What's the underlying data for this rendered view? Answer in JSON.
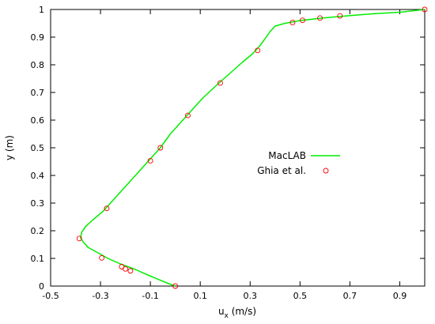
{
  "chart_data": {
    "type": "line",
    "title": "",
    "xlabel": "u",
    "xlabel_sub": "x",
    "xlabel_unit": " (m/s)",
    "ylabel": "y (m)",
    "xlim": [
      -0.5,
      1
    ],
    "ylim": [
      0,
      1
    ],
    "x_ticks": [
      -0.5,
      -0.3,
      -0.1,
      0.1,
      0.3,
      0.5,
      0.7,
      0.9
    ],
    "x_tick_labels": [
      "-0.5",
      "-0.3",
      "-0.1",
      "0.1",
      "0.3",
      "0.5",
      "0.7",
      "0.9"
    ],
    "y_ticks": [
      0,
      0.1,
      0.2,
      0.3,
      0.4,
      0.5,
      0.6,
      0.7,
      0.8,
      0.9,
      1
    ],
    "y_tick_labels": [
      "0",
      "0.1",
      "0.2",
      "0.3",
      "0.4",
      "0.5",
      "0.6",
      "0.7",
      "0.8",
      "0.9",
      "1"
    ],
    "grid": false,
    "legend_position": "center-right",
    "series": [
      {
        "name": "MacLAB",
        "style": "line",
        "color": "#00ee00",
        "points": [
          [
            0.0,
            0.0
          ],
          [
            -0.03,
            0.01
          ],
          [
            -0.07,
            0.025
          ],
          [
            -0.11,
            0.04
          ],
          [
            -0.16,
            0.06
          ],
          [
            -0.22,
            0.08
          ],
          [
            -0.27,
            0.1
          ],
          [
            -0.31,
            0.12
          ],
          [
            -0.35,
            0.14
          ],
          [
            -0.37,
            0.16
          ],
          [
            -0.38,
            0.175
          ],
          [
            -0.375,
            0.195
          ],
          [
            -0.36,
            0.215
          ],
          [
            -0.33,
            0.24
          ],
          [
            -0.29,
            0.27
          ],
          [
            -0.25,
            0.31
          ],
          [
            -0.2,
            0.36
          ],
          [
            -0.15,
            0.41
          ],
          [
            -0.1,
            0.46
          ],
          [
            -0.06,
            0.5
          ],
          [
            -0.02,
            0.55
          ],
          [
            0.02,
            0.59
          ],
          [
            0.06,
            0.63
          ],
          [
            0.11,
            0.68
          ],
          [
            0.17,
            0.73
          ],
          [
            0.22,
            0.77
          ],
          [
            0.27,
            0.81
          ],
          [
            0.31,
            0.84
          ],
          [
            0.34,
            0.87
          ],
          [
            0.36,
            0.895
          ],
          [
            0.38,
            0.92
          ],
          [
            0.4,
            0.94
          ],
          [
            0.44,
            0.95
          ],
          [
            0.5,
            0.96
          ],
          [
            0.6,
            0.97
          ],
          [
            0.7,
            0.978
          ],
          [
            0.8,
            0.985
          ],
          [
            0.9,
            0.99
          ],
          [
            0.96,
            0.996
          ],
          [
            1.0,
            1.0
          ]
        ]
      },
      {
        "name": "Ghia et al.",
        "style": "markers",
        "marker": "circle",
        "color": "#ff0000",
        "points": [
          [
            0.0,
            0.0
          ],
          [
            -0.18,
            0.055
          ],
          [
            -0.2,
            0.062
          ],
          [
            -0.215,
            0.07
          ],
          [
            -0.295,
            0.102
          ],
          [
            -0.385,
            0.172
          ],
          [
            -0.275,
            0.281
          ],
          [
            -0.1,
            0.453
          ],
          [
            -0.06,
            0.5
          ],
          [
            0.05,
            0.617
          ],
          [
            0.18,
            0.734
          ],
          [
            0.33,
            0.852
          ],
          [
            0.47,
            0.953
          ],
          [
            0.51,
            0.961
          ],
          [
            0.58,
            0.969
          ],
          [
            0.66,
            0.977
          ],
          [
            1.0,
            1.0
          ]
        ]
      }
    ]
  }
}
